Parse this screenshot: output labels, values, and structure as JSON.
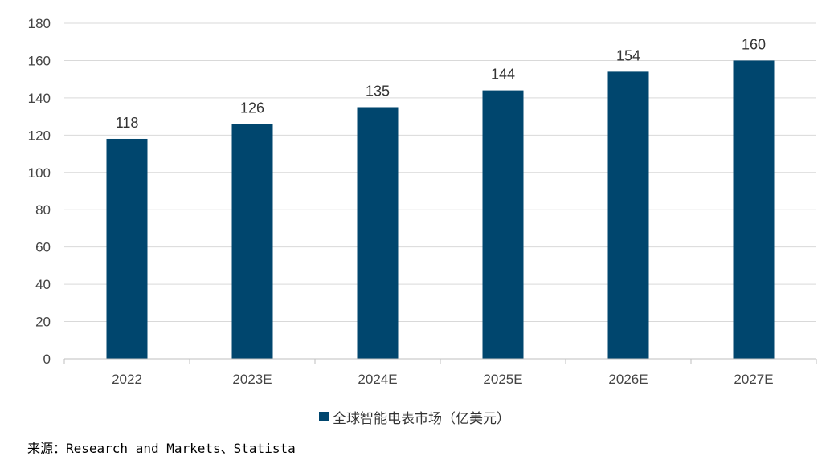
{
  "colors": {
    "bar": "#00466e",
    "gridline": "#d9d9d9",
    "axis": "#bfbfbf"
  },
  "chart_data": {
    "type": "bar",
    "categories": [
      "2022",
      "2023E",
      "2024E",
      "2025E",
      "2026E",
      "2027E"
    ],
    "series": [
      {
        "name": "全球智能电表市场（亿美元）",
        "values": [
          118,
          126,
          135,
          144,
          154,
          160
        ]
      }
    ],
    "ylim": [
      0,
      180
    ],
    "yticks": [
      0,
      20,
      40,
      60,
      80,
      100,
      120,
      140,
      160,
      180
    ],
    "grid": true,
    "data_labels": true,
    "legend_position": "bottom"
  },
  "legend": {
    "label": "全球智能电表市场（亿美元）"
  },
  "source": "来源：Research and Markets、Statista"
}
